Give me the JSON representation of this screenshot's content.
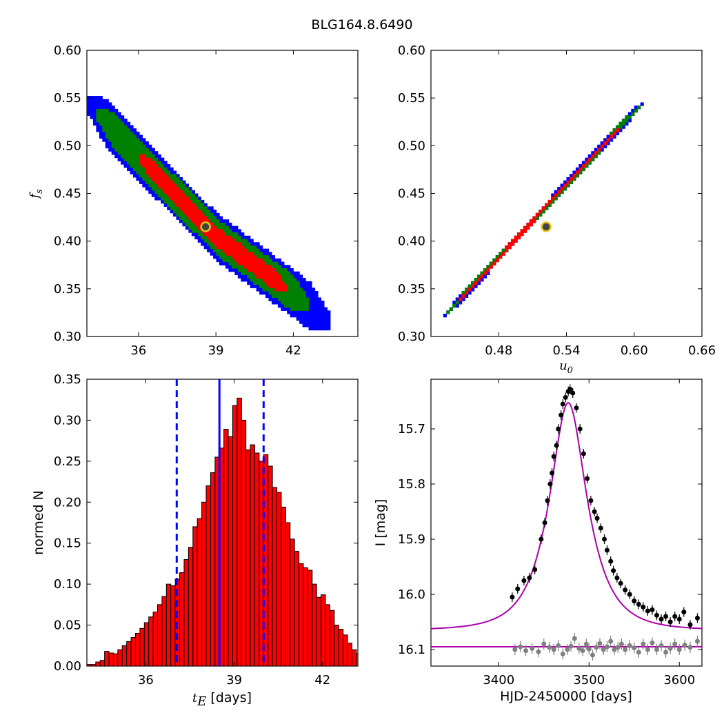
{
  "title": "BLG164.8.6490",
  "chart_data": [
    {
      "id": "tE-fs",
      "type": "heatmap",
      "xlim": [
        34,
        44.5
      ],
      "ylim": [
        0.3,
        0.6
      ],
      "xticks": [
        36,
        39,
        42
      ],
      "xticklabels": [
        "36",
        "39",
        "42"
      ],
      "yticks": [
        0.3,
        0.35,
        0.4,
        0.45,
        0.5,
        0.55,
        0.6
      ],
      "yticklabels": [
        "0.30",
        "0.35",
        "0.40",
        "0.45",
        "0.50",
        "0.55",
        "0.60"
      ],
      "ylabel": "f",
      "ylabel_sub": "s",
      "xlabel": "",
      "ridge": [
        [
          34.0,
          0.545
        ],
        [
          39.0,
          0.405
        ],
        [
          43.0,
          0.325
        ]
      ],
      "halfwidths": {
        "blue": 0.025,
        "green": 0.019,
        "red": 0.0105
      },
      "red_range": [
        36.0,
        41.7
      ],
      "green_range": [
        34.4,
        42.6
      ],
      "blue_range": [
        34.0,
        43.4
      ],
      "contour_colors": {
        "outer": "#0000ff",
        "mid": "#008000",
        "inner": "#ff0000"
      },
      "best_fit": [
        38.6,
        0.415
      ]
    },
    {
      "id": "u0-fs",
      "type": "heatmap",
      "xlim": [
        0.42,
        0.66
      ],
      "ylim": [
        0.3,
        0.6
      ],
      "xticks": [
        0.48,
        0.54,
        0.6,
        0.66
      ],
      "xticklabels": [
        "0.48",
        "0.54",
        "0.60",
        "0.66"
      ],
      "yticks": [
        0.3,
        0.35,
        0.4,
        0.45,
        0.5,
        0.55,
        0.6
      ],
      "yticklabels": [
        "0.30",
        "0.35",
        "0.40",
        "0.45",
        "0.50",
        "0.55",
        "0.60"
      ],
      "xlabel": "u",
      "xlabel_sub": "0",
      "ridge": [
        [
          0.432,
          0.322
        ],
        [
          0.608,
          0.546
        ]
      ],
      "halfwidths": {
        "blue": 0.0045,
        "green": 0.0033,
        "red": 0.002
      },
      "red_range": [
        0.445,
        0.585
      ],
      "green_range": [
        0.435,
        0.606
      ],
      "blue_range": [
        0.431,
        0.609
      ],
      "contour_colors": {
        "outer": "#0000ff",
        "mid": "#008000",
        "inner": "#ff0000"
      },
      "best_fit": [
        0.522,
        0.415
      ]
    },
    {
      "id": "tE-hist",
      "type": "bar",
      "xlim": [
        34,
        43.2
      ],
      "ylim": [
        0,
        0.35
      ],
      "xticks": [
        36,
        39,
        42
      ],
      "xticklabels": [
        "36",
        "39",
        "42"
      ],
      "yticks": [
        0.0,
        0.05,
        0.1,
        0.15,
        0.2,
        0.25,
        0.3,
        0.35
      ],
      "yticklabels": [
        "0.00",
        "0.05",
        "0.10",
        "0.15",
        "0.20",
        "0.25",
        "0.30",
        "0.35"
      ],
      "ylabel": "normed N",
      "xlabel": "t",
      "xlabel_sub": "E",
      "xlabel_unit": " [days]",
      "bin_start": 34.0,
      "bin_width": 0.15,
      "values": [
        0.002,
        0.002,
        0.005,
        0.007,
        0.018,
        0.016,
        0.015,
        0.02,
        0.025,
        0.03,
        0.035,
        0.04,
        0.046,
        0.053,
        0.06,
        0.066,
        0.075,
        0.085,
        0.1,
        0.098,
        0.106,
        0.114,
        0.13,
        0.145,
        0.17,
        0.18,
        0.2,
        0.22,
        0.236,
        0.255,
        0.266,
        0.289,
        0.28,
        0.318,
        0.327,
        0.3,
        0.264,
        0.27,
        0.26,
        0.25,
        0.258,
        0.244,
        0.218,
        0.212,
        0.194,
        0.175,
        0.155,
        0.14,
        0.125,
        0.12,
        0.117,
        0.1,
        0.084,
        0.087,
        0.075,
        0.068,
        0.05,
        0.045,
        0.038,
        0.028,
        0.02,
        0.015,
        0.005,
        0.003,
        0.003,
        0.002,
        0.002,
        0.001,
        0.001
      ],
      "bar_color": "#ff0000",
      "median": 38.5,
      "bounds": [
        37.05,
        40.0
      ],
      "line_color": "#0000ff"
    },
    {
      "id": "lightcurve",
      "type": "scatter",
      "xlim": [
        3325,
        3625
      ],
      "ylim": [
        16.13,
        15.61
      ],
      "xticks": [
        3400,
        3500,
        3600
      ],
      "xticklabels": [
        "3400",
        "3500",
        "3600"
      ],
      "yticks": [
        15.7,
        15.8,
        15.9,
        16.0,
        16.1
      ],
      "yticklabels": [
        "15.7",
        "15.8",
        "15.9",
        "16.0",
        "16.1"
      ],
      "ylabel": "I [mag]",
      "xlabel": "HJD-2450000 [days]",
      "model": {
        "t0": 3477,
        "tE": 38.5,
        "u0": 0.52,
        "fs": 0.415,
        "I_base": 16.065
      },
      "data_points": [
        [
          3415,
          16.005
        ],
        [
          3421,
          15.99
        ],
        [
          3428,
          15.975
        ],
        [
          3434,
          15.97
        ],
        [
          3440,
          15.955
        ],
        [
          3447,
          15.9
        ],
        [
          3451,
          15.87
        ],
        [
          3454,
          15.83
        ],
        [
          3457,
          15.8
        ],
        [
          3459,
          15.78
        ],
        [
          3461,
          15.75
        ],
        [
          3464,
          15.73
        ],
        [
          3466,
          15.7
        ],
        [
          3469,
          15.675
        ],
        [
          3471,
          15.655
        ],
        [
          3474,
          15.643
        ],
        [
          3477,
          15.632
        ],
        [
          3479,
          15.628
        ],
        [
          3482,
          15.635
        ],
        [
          3486,
          15.662
        ],
        [
          3490,
          15.7
        ],
        [
          3494,
          15.745
        ],
        [
          3498,
          15.79
        ],
        [
          3502,
          15.83
        ],
        [
          3506,
          15.85
        ],
        [
          3509,
          15.862
        ],
        [
          3513,
          15.88
        ],
        [
          3517,
          15.9
        ],
        [
          3520,
          15.92
        ],
        [
          3524,
          15.94
        ],
        [
          3527,
          15.957
        ],
        [
          3531,
          15.97
        ],
        [
          3535,
          15.98
        ],
        [
          3540,
          15.992
        ],
        [
          3545,
          16.0
        ],
        [
          3550,
          16.012
        ],
        [
          3555,
          16.018
        ],
        [
          3560,
          16.023
        ],
        [
          3565,
          16.03
        ],
        [
          3570,
          16.028
        ],
        [
          3575,
          16.038
        ],
        [
          3580,
          16.045
        ],
        [
          3585,
          16.04
        ],
        [
          3590,
          16.05
        ],
        [
          3595,
          16.04
        ],
        [
          3600,
          16.045
        ],
        [
          3605,
          16.032
        ],
        [
          3612,
          16.055
        ],
        [
          3620,
          16.043
        ]
      ],
      "residual_level": 16.095,
      "residual_points": [
        [
          3418,
          16.1
        ],
        [
          3424,
          16.095
        ],
        [
          3430,
          16.102
        ],
        [
          3437,
          16.098
        ],
        [
          3444,
          16.104
        ],
        [
          3450,
          16.09
        ],
        [
          3456,
          16.096
        ],
        [
          3461,
          16.1
        ],
        [
          3466,
          16.093
        ],
        [
          3471,
          16.108
        ],
        [
          3476,
          16.1
        ],
        [
          3480,
          16.094
        ],
        [
          3484,
          16.08
        ],
        [
          3489,
          16.098
        ],
        [
          3493,
          16.102
        ],
        [
          3497,
          16.09
        ],
        [
          3500,
          16.099
        ],
        [
          3504,
          16.11
        ],
        [
          3508,
          16.096
        ],
        [
          3512,
          16.089
        ],
        [
          3516,
          16.1
        ],
        [
          3520,
          16.095
        ],
        [
          3524,
          16.085
        ],
        [
          3528,
          16.1
        ],
        [
          3532,
          16.096
        ],
        [
          3536,
          16.09
        ],
        [
          3540,
          16.1
        ],
        [
          3545,
          16.093
        ],
        [
          3550,
          16.097
        ],
        [
          3555,
          16.105
        ],
        [
          3560,
          16.09
        ],
        [
          3565,
          16.1
        ],
        [
          3570,
          16.088
        ],
        [
          3575,
          16.1
        ],
        [
          3580,
          16.093
        ],
        [
          3585,
          16.105
        ],
        [
          3590,
          16.098
        ],
        [
          3595,
          16.09
        ],
        [
          3600,
          16.1
        ],
        [
          3606,
          16.092
        ],
        [
          3612,
          16.096
        ],
        [
          3620,
          16.085
        ]
      ],
      "data_color": "#000000",
      "residual_color": "#808080",
      "model_color": "#aa00aa"
    }
  ]
}
